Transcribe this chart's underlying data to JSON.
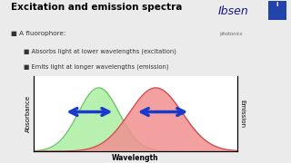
{
  "title": "Excitation and emission spectra",
  "bg_color": "#ebebeb",
  "bottom_bar_color": "#2a4a8a",
  "excitation_color": "#b8f0b0",
  "excitation_edge_color": "#60c060",
  "emission_color": "#f09090",
  "emission_edge_color": "#d04040",
  "arrow_color": "#1a3acc",
  "xlabel": "Wavelength",
  "ylabel_left": "Absorbance",
  "ylabel_right": "Emission",
  "plot_bg": "#ffffff",
  "ibsen_color": "#1a1a80",
  "ibsen_sub_color": "#666666",
  "excitation_peak": 0.32,
  "emission_peak": 0.6,
  "sigma_exc": 0.1,
  "sigma_em": 0.13,
  "title_fontsize": 7.5,
  "bullet_fontsize": 5.2,
  "axis_label_fontsize": 5.0
}
